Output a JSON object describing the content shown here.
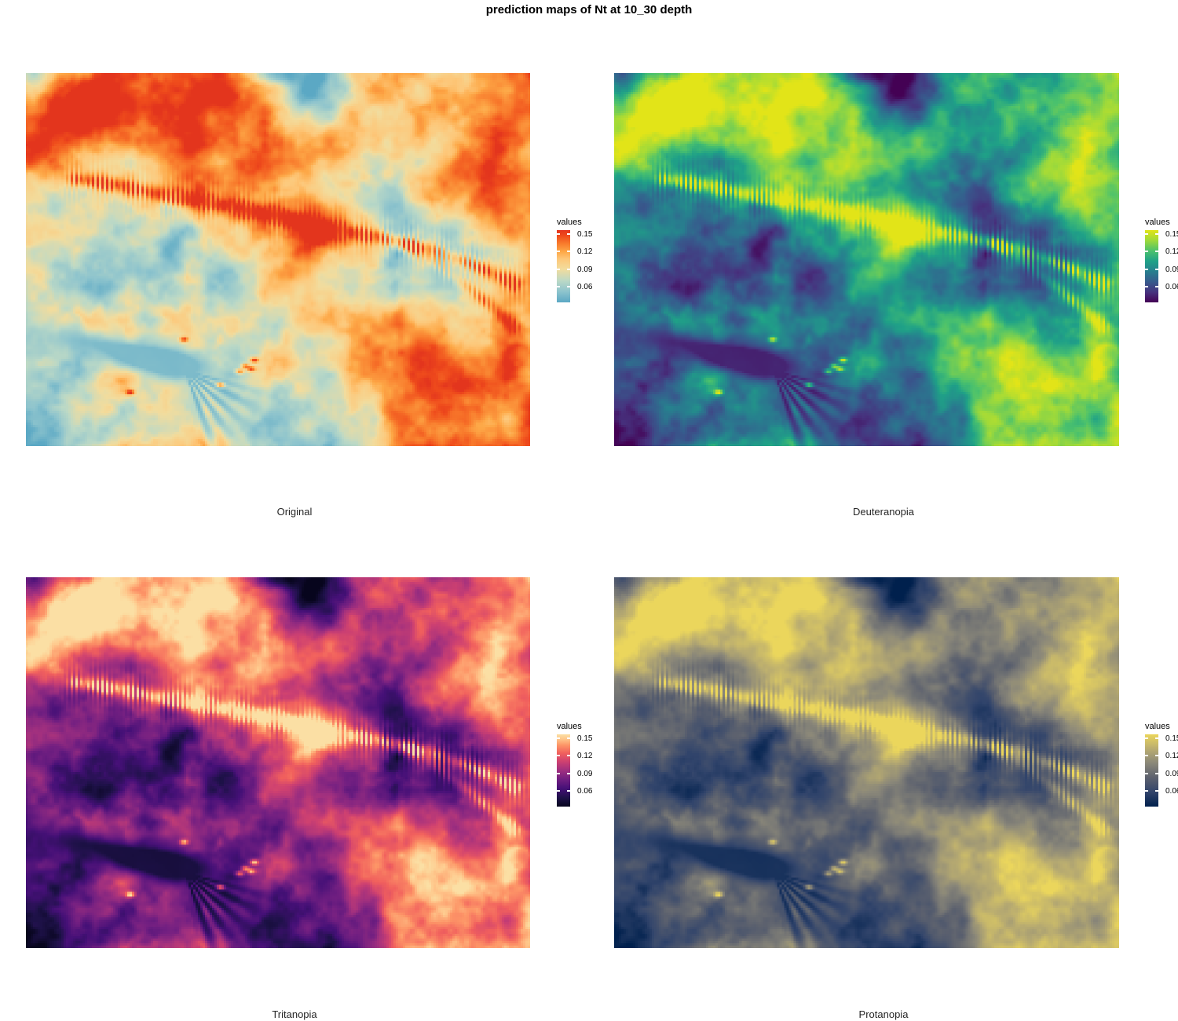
{
  "title": "prediction maps of Nt at 10_30 depth",
  "legend": {
    "title": "values",
    "ticks": [
      "0.15",
      "0.12",
      "0.09",
      "0.06"
    ]
  },
  "panels": [
    {
      "caption": "Original",
      "palette_name": "red-orange-yellow-lightblue",
      "palette": [
        [
          0.0,
          "#5ba8c4"
        ],
        [
          0.15,
          "#8ec4cd"
        ],
        [
          0.3,
          "#bcd9c6"
        ],
        [
          0.46,
          "#f2dc9d"
        ],
        [
          0.6,
          "#fdc779"
        ],
        [
          0.7,
          "#fda847"
        ],
        [
          0.82,
          "#f8792b"
        ],
        [
          0.92,
          "#ef4c1c"
        ],
        [
          1.0,
          "#e3351d"
        ]
      ]
    },
    {
      "caption": "Deuteranopia",
      "palette_name": "viridis-like",
      "palette": [
        [
          0.0,
          "#440154"
        ],
        [
          0.14,
          "#46327e"
        ],
        [
          0.29,
          "#365c8d"
        ],
        [
          0.43,
          "#277f8e"
        ],
        [
          0.57,
          "#1fa187"
        ],
        [
          0.71,
          "#4ac16d"
        ],
        [
          0.86,
          "#a0da39"
        ],
        [
          1.0,
          "#e2e418"
        ]
      ]
    },
    {
      "caption": "Tritanopia",
      "palette_name": "magma-like",
      "palette": [
        [
          0.0,
          "#07051d"
        ],
        [
          0.12,
          "#1d1147"
        ],
        [
          0.25,
          "#451077"
        ],
        [
          0.38,
          "#721f81"
        ],
        [
          0.5,
          "#9f2f7f"
        ],
        [
          0.62,
          "#cd4071"
        ],
        [
          0.74,
          "#f1605d"
        ],
        [
          0.85,
          "#fd9567"
        ],
        [
          0.94,
          "#fec98d"
        ],
        [
          1.0,
          "#fbdfa4"
        ]
      ]
    },
    {
      "caption": "Protanopia",
      "palette_name": "cividis-like",
      "palette": [
        [
          0.0,
          "#00204d"
        ],
        [
          0.2,
          "#31446b"
        ],
        [
          0.4,
          "#5c616e"
        ],
        [
          0.6,
          "#8a8779"
        ],
        [
          0.8,
          "#b9ac70"
        ],
        [
          1.0,
          "#ebd65c"
        ]
      ]
    }
  ],
  "chart_data": {
    "type": "heatmap",
    "title": "prediction maps of Nt at 10_30 depth",
    "variable": "Nt",
    "depth_interval": "10_30",
    "layout": "2x2 grid, same raster rendered in four colour palettes, legend right of each panel, no axes",
    "legend": {
      "title": "values",
      "tick_values": [
        0.15,
        0.12,
        0.09,
        0.06
      ],
      "value_range_estimate": [
        0.033,
        0.157
      ],
      "position": "right"
    },
    "panels": [
      {
        "label": "Original",
        "palette": "red-orange-yellow-lightblue"
      },
      {
        "label": "Deuteranopia",
        "palette": "viridis-like"
      },
      {
        "label": "Tritanopia",
        "palette": "magma-like"
      },
      {
        "label": "Protanopia",
        "palette": "cividis-like"
      }
    ]
  }
}
